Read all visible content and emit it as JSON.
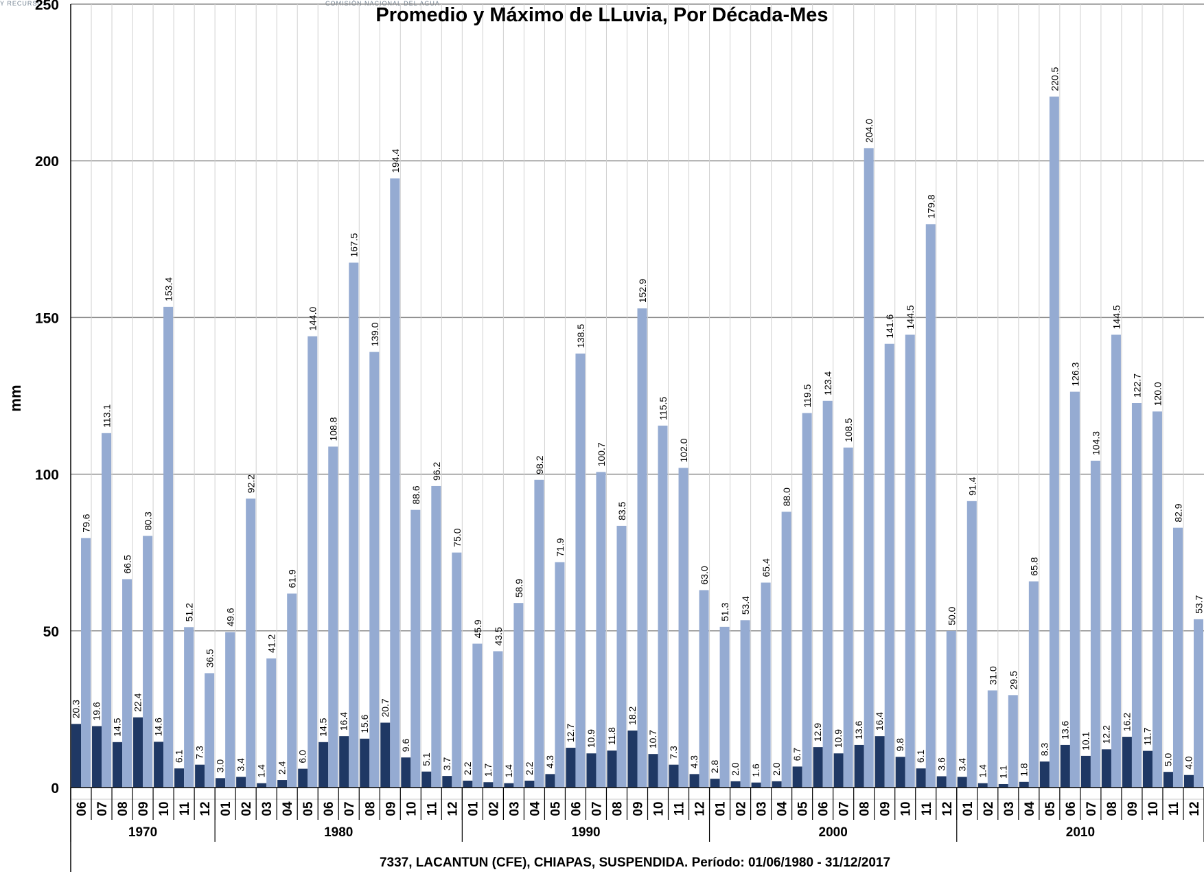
{
  "chart_data": {
    "type": "bar",
    "title": "Promedio y Máximo de LLuvia, Por Década-Mes",
    "ylabel": "mm",
    "xlabel": "7337, LACANTUN (CFE), CHIAPAS, SUSPENDIDA. Período: 01/06/1980 - 31/12/2017",
    "ylim": [
      0,
      250
    ],
    "yticks": [
      "0",
      "50",
      "100",
      "150",
      "200",
      "250"
    ],
    "grid": true,
    "colors": {
      "promedio": "#1f3864",
      "maximo": "#95abd2"
    },
    "decades": [
      {
        "label": "1970",
        "months": [
          "06",
          "07",
          "08",
          "09",
          "10",
          "11",
          "12"
        ]
      },
      {
        "label": "1980",
        "months": [
          "01",
          "02",
          "03",
          "04",
          "05",
          "06",
          "07",
          "08",
          "09",
          "10",
          "11",
          "12"
        ]
      },
      {
        "label": "1990",
        "months": [
          "01",
          "02",
          "03",
          "04",
          "05",
          "06",
          "07",
          "08",
          "09",
          "10",
          "11",
          "12"
        ]
      },
      {
        "label": "2000",
        "months": [
          "01",
          "02",
          "03",
          "04",
          "05",
          "06",
          "07",
          "08",
          "09",
          "10",
          "11",
          "12"
        ]
      },
      {
        "label": "2010",
        "months": [
          "01",
          "02",
          "03",
          "04",
          "05",
          "06",
          "07",
          "08",
          "09",
          "10",
          "11",
          "12"
        ]
      }
    ],
    "series": [
      {
        "key": "promedio",
        "values": [
          20.3,
          19.6,
          14.5,
          22.4,
          14.6,
          6.1,
          7.3,
          3.0,
          3.4,
          1.4,
          2.4,
          6.0,
          14.5,
          16.4,
          15.6,
          20.7,
          9.6,
          5.1,
          3.7,
          2.2,
          1.7,
          1.4,
          2.2,
          4.3,
          12.7,
          10.9,
          11.8,
          18.2,
          10.7,
          7.3,
          4.3,
          2.8,
          2.0,
          1.6,
          2.0,
          6.7,
          12.9,
          10.9,
          13.6,
          16.4,
          9.8,
          6.1,
          3.6,
          3.4,
          1.4,
          1.1,
          1.8,
          8.3,
          13.6,
          10.1,
          12.2,
          16.2,
          11.7,
          5.0,
          4.0
        ]
      },
      {
        "key": "maximo",
        "values": [
          79.6,
          113.1,
          66.5,
          80.3,
          153.4,
          51.2,
          36.5,
          49.6,
          92.2,
          41.2,
          61.9,
          144.0,
          108.8,
          167.5,
          139.0,
          194.4,
          88.6,
          96.2,
          75.0,
          45.9,
          43.5,
          58.9,
          98.2,
          71.9,
          138.5,
          100.7,
          83.5,
          152.9,
          115.5,
          102.0,
          63.0,
          51.3,
          53.4,
          65.4,
          88.0,
          119.5,
          123.4,
          108.5,
          204.0,
          141.6,
          144.5,
          179.8,
          50.0,
          91.4,
          31.0,
          29.5,
          65.8,
          220.5,
          126.3,
          104.3,
          144.5,
          122.7,
          120.0,
          82.9,
          53.7
        ]
      }
    ]
  },
  "logos": {
    "left_text": "Y RECURSOS NATURALES",
    "right_text": "COMISIÓN NACIONAL DEL AGUA"
  }
}
